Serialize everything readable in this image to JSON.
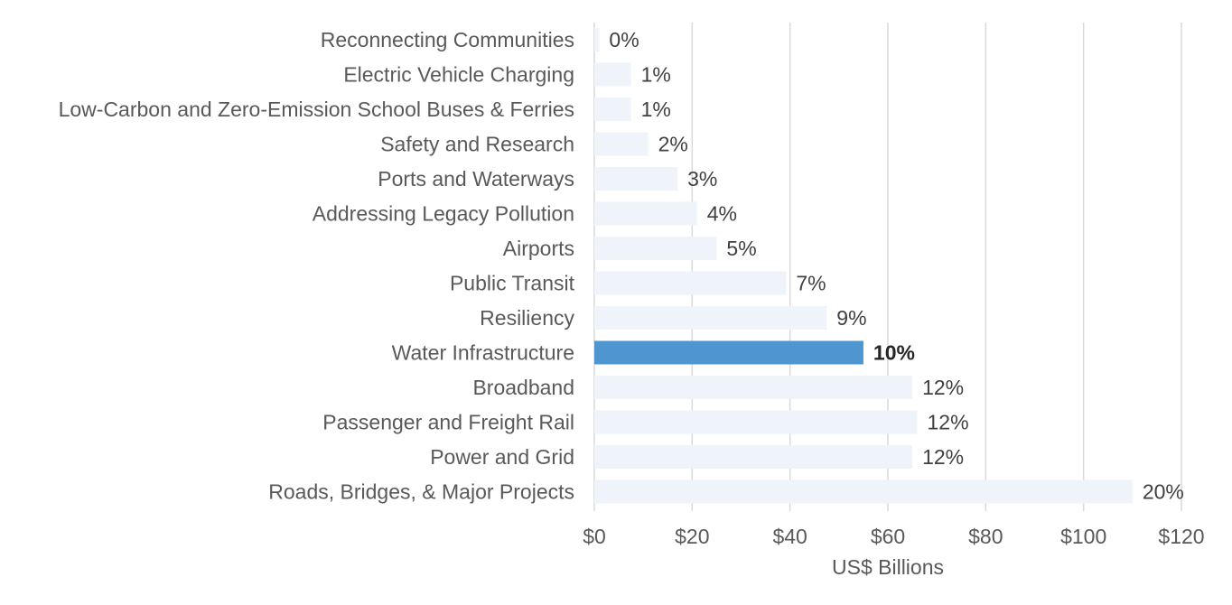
{
  "chart_data": {
    "type": "bar",
    "orientation": "horizontal",
    "title": "",
    "xlabel": "US$ Billions",
    "ylabel": "",
    "xlim": [
      0,
      120
    ],
    "xticks": [
      0,
      20,
      40,
      60,
      80,
      100,
      120
    ],
    "xtick_labels": [
      "$0",
      "$20",
      "$40",
      "$60",
      "$80",
      "$100",
      "$120"
    ],
    "grid": "vertical",
    "legend": "none",
    "colors": {
      "bar": "#eef4fa",
      "highlight": "#4f95d0"
    },
    "categories": [
      "Reconnecting Communities",
      "Electric Vehicle Charging",
      "Low-Carbon and Zero-Emission School Buses & Ferries",
      "Safety and Research",
      "Ports and Waterways",
      "Addressing Legacy Pollution",
      "Airports",
      "Public Transit",
      "Resiliency",
      "Water Infrastructure",
      "Broadband",
      "Passenger and Freight Rail",
      "Power and Grid",
      "Roads, Bridges, & Major Projects"
    ],
    "values": [
      1,
      7.5,
      7.5,
      11,
      17,
      21,
      25,
      39.2,
      47.5,
      55,
      65,
      66,
      65,
      110
    ],
    "data_labels": [
      "0%",
      "1%",
      "1%",
      "2%",
      "3%",
      "4%",
      "5%",
      "7%",
      "9%",
      "10%",
      "12%",
      "12%",
      "12%",
      "20%"
    ],
    "highlight_index": 9
  }
}
